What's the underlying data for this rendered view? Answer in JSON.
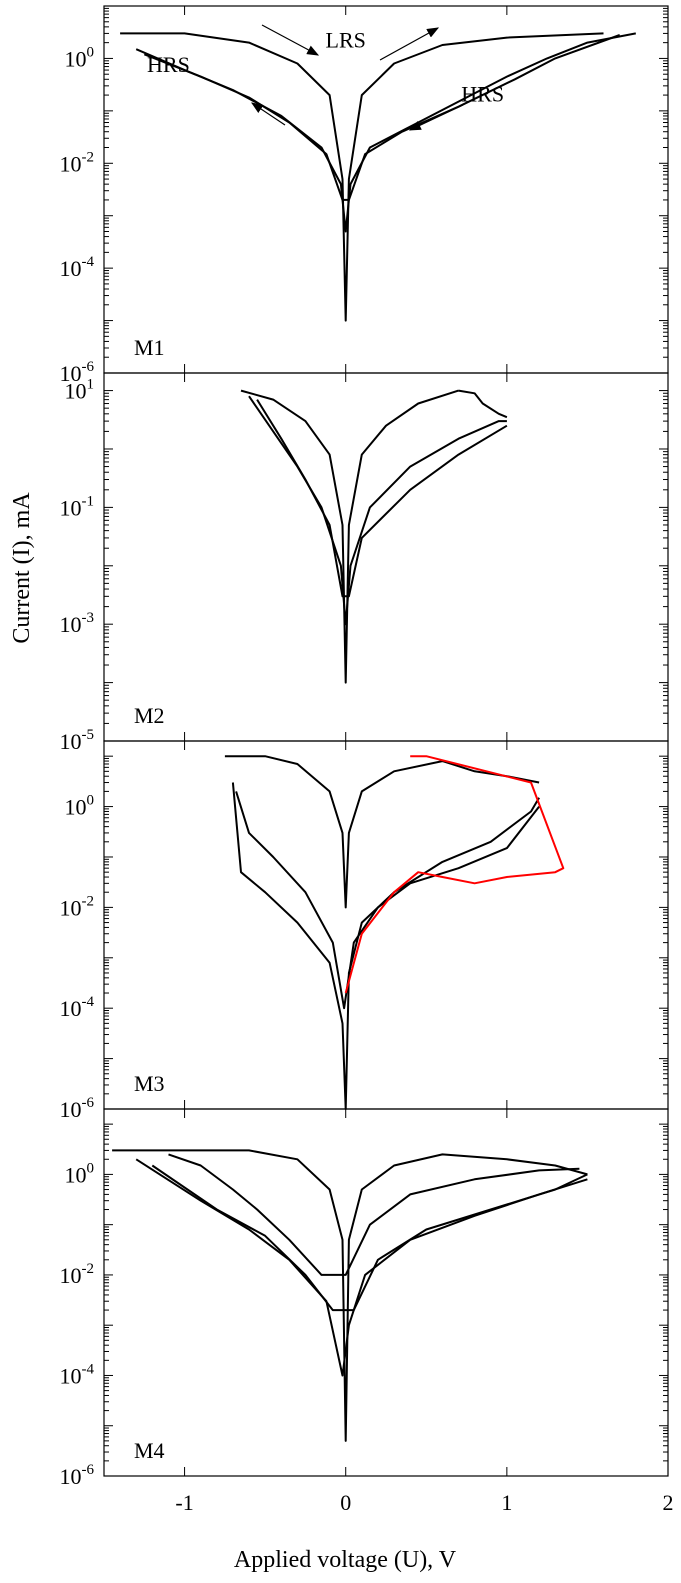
{
  "chart_data": {
    "type": "line",
    "xlabel": "Applied voltage (U), V",
    "ylabel": "Current (I), mA",
    "x_range": [
      -1.5,
      2
    ],
    "x_ticks": [
      -1,
      0,
      1,
      2
    ],
    "x_tick_labels": [
      "-1",
      "0",
      "1",
      "2"
    ],
    "y_scale": "log",
    "grid": false,
    "panels": [
      {
        "label": "M1",
        "ylim": [
          1e-06,
          10
        ],
        "y_ticks": [
          {
            "value": 1,
            "base": "10",
            "exp": "0"
          },
          {
            "value": 0.01,
            "base": "10",
            "exp": "-2"
          },
          {
            "value": 0.0001,
            "base": "10",
            "exp": "-4"
          },
          {
            "value": 1e-06,
            "base": "10",
            "exp": "-6"
          }
        ],
        "annotations": [
          {
            "text": "LRS",
            "x": 0.0,
            "y": 1.6
          },
          {
            "text": "HRS",
            "x": -1.1,
            "y": 0.55
          },
          {
            "text": "HRS",
            "x": 0.85,
            "y": 0.15
          }
        ],
        "series": [
          {
            "color": "#000000",
            "points": [
              [
                -1.4,
                3
              ],
              [
                -1.0,
                3
              ],
              [
                -0.6,
                2
              ],
              [
                -0.3,
                0.8
              ],
              [
                -0.1,
                0.2
              ],
              [
                -0.02,
                0.005
              ],
              [
                0,
                1e-05
              ],
              [
                0.02,
                0.005
              ],
              [
                0.1,
                0.2
              ],
              [
                0.3,
                0.8
              ],
              [
                0.6,
                1.8
              ],
              [
                1.0,
                2.5
              ],
              [
                1.6,
                3
              ]
            ]
          },
          {
            "color": "#000000",
            "points": [
              [
                -1.3,
                1.5
              ],
              [
                -1.0,
                0.6
              ],
              [
                -0.7,
                0.25
              ],
              [
                -0.4,
                0.08
              ],
              [
                -0.15,
                0.02
              ],
              [
                -0.03,
                0.004
              ],
              [
                0,
                0.0005
              ],
              [
                0.03,
                0.004
              ],
              [
                0.15,
                0.02
              ],
              [
                0.4,
                0.05
              ],
              [
                0.7,
                0.15
              ],
              [
                1.0,
                0.45
              ],
              [
                1.25,
                1.0
              ],
              [
                1.5,
                2.0
              ],
              [
                1.8,
                3
              ]
            ]
          },
          {
            "color": "#000000",
            "points": [
              [
                -1.25,
                1.2
              ],
              [
                -0.9,
                0.45
              ],
              [
                -0.6,
                0.18
              ],
              [
                -0.35,
                0.06
              ],
              [
                -0.12,
                0.015
              ],
              [
                -0.02,
                0.002
              ],
              [
                0.02,
                0.002
              ],
              [
                0.12,
                0.015
              ],
              [
                0.35,
                0.04
              ],
              [
                0.7,
                0.12
              ],
              [
                1.05,
                0.4
              ],
              [
                1.3,
                1.0
              ],
              [
                1.7,
                2.8
              ]
            ]
          }
        ]
      },
      {
        "label": "M2",
        "ylim": [
          1e-05,
          20
        ],
        "y_ticks": [
          {
            "value": 10,
            "base": "10",
            "exp": "1"
          },
          {
            "value": 0.1,
            "base": "10",
            "exp": "-1"
          },
          {
            "value": 0.001,
            "base": "10",
            "exp": "-3"
          },
          {
            "value": 1e-05,
            "base": "10",
            "exp": "-5"
          }
        ],
        "series": [
          {
            "color": "#000000",
            "points": [
              [
                -0.65,
                10
              ],
              [
                -0.45,
                7
              ],
              [
                -0.25,
                3
              ],
              [
                -0.1,
                0.8
              ],
              [
                -0.02,
                0.05
              ],
              [
                0,
                0.0001
              ],
              [
                0.02,
                0.05
              ],
              [
                0.1,
                0.8
              ],
              [
                0.25,
                2.5
              ],
              [
                0.45,
                6
              ],
              [
                0.7,
                10
              ]
            ]
          },
          {
            "color": "#000000",
            "points": [
              [
                -0.6,
                8
              ],
              [
                -0.45,
                2
              ],
              [
                -0.3,
                0.5
              ],
              [
                -0.15,
                0.1
              ],
              [
                -0.03,
                0.01
              ],
              [
                0,
                0.001
              ],
              [
                0.03,
                0.01
              ],
              [
                0.15,
                0.1
              ],
              [
                0.4,
                0.5
              ],
              [
                0.7,
                1.5
              ],
              [
                0.95,
                3
              ],
              [
                1.0,
                3
              ]
            ]
          },
          {
            "color": "#000000",
            "points": [
              [
                -0.55,
                7
              ],
              [
                -0.4,
                1.5
              ],
              [
                -0.25,
                0.3
              ],
              [
                -0.1,
                0.05
              ],
              [
                -0.02,
                0.003
              ],
              [
                0.02,
                0.003
              ],
              [
                0.1,
                0.03
              ],
              [
                0.4,
                0.2
              ],
              [
                0.7,
                0.8
              ],
              [
                1.0,
                2.5
              ]
            ]
          },
          {
            "color": "#000000",
            "points": [
              [
                0.7,
                10
              ],
              [
                0.8,
                9
              ],
              [
                0.85,
                6
              ],
              [
                0.95,
                4
              ],
              [
                1.0,
                3.5
              ]
            ]
          }
        ]
      },
      {
        "label": "M3",
        "ylim": [
          1e-06,
          20
        ],
        "y_ticks": [
          {
            "value": 1,
            "base": "10",
            "exp": "0"
          },
          {
            "value": 0.01,
            "base": "10",
            "exp": "-2"
          },
          {
            "value": 0.0001,
            "base": "10",
            "exp": "-4"
          },
          {
            "value": 1e-06,
            "base": "10",
            "exp": "-6"
          }
        ],
        "series": [
          {
            "color": "#000000",
            "points": [
              [
                -0.75,
                10
              ],
              [
                -0.5,
                10
              ],
              [
                -0.3,
                7
              ],
              [
                -0.1,
                2
              ],
              [
                -0.02,
                0.3
              ],
              [
                0,
                0.01
              ],
              [
                0.02,
                0.3
              ],
              [
                0.1,
                2
              ],
              [
                0.3,
                5
              ],
              [
                0.6,
                8
              ],
              [
                0.8,
                5
              ],
              [
                1.0,
                4
              ],
              [
                1.2,
                3
              ]
            ]
          },
          {
            "color": "#000000",
            "points": [
              [
                -0.7,
                3
              ],
              [
                -0.65,
                0.05
              ],
              [
                -0.5,
                0.02
              ],
              [
                -0.3,
                0.005
              ],
              [
                -0.1,
                0.0008
              ],
              [
                -0.02,
                5e-05
              ],
              [
                0,
                1e-06
              ],
              [
                0.02,
                0.0005
              ],
              [
                0.1,
                0.005
              ],
              [
                0.3,
                0.02
              ],
              [
                0.6,
                0.08
              ],
              [
                0.9,
                0.2
              ],
              [
                1.15,
                0.8
              ],
              [
                1.2,
                1.5
              ]
            ]
          },
          {
            "color": "#000000",
            "points": [
              [
                -0.68,
                2
              ],
              [
                -0.6,
                0.3
              ],
              [
                -0.45,
                0.1
              ],
              [
                -0.25,
                0.02
              ],
              [
                -0.08,
                0.002
              ],
              [
                -0.01,
                0.0001
              ],
              [
                0.05,
                0.002
              ],
              [
                0.2,
                0.01
              ],
              [
                0.4,
                0.03
              ],
              [
                0.7,
                0.06
              ],
              [
                1.0,
                0.15
              ],
              [
                1.2,
                1.0
              ]
            ]
          },
          {
            "color": "#ff0000",
            "points": [
              [
                0.0,
                0.0002
              ],
              [
                0.1,
                0.003
              ],
              [
                0.3,
                0.02
              ],
              [
                0.45,
                0.05
              ],
              [
                0.6,
                0.04
              ],
              [
                0.8,
                0.03
              ],
              [
                1.0,
                0.04
              ],
              [
                1.3,
                0.05
              ],
              [
                1.35,
                0.06
              ],
              [
                1.15,
                3
              ],
              [
                0.5,
                10
              ],
              [
                0.4,
                10
              ]
            ]
          }
        ]
      },
      {
        "label": "M4",
        "ylim": [
          1e-06,
          20
        ],
        "y_ticks": [
          {
            "value": 1,
            "base": "10",
            "exp": "0"
          },
          {
            "value": 0.01,
            "base": "10",
            "exp": "-2"
          },
          {
            "value": 0.0001,
            "base": "10",
            "exp": "-4"
          },
          {
            "value": 1e-06,
            "base": "10",
            "exp": "-6"
          }
        ],
        "series": [
          {
            "color": "#000000",
            "points": [
              [
                -1.45,
                3
              ],
              [
                -1.0,
                3
              ],
              [
                -0.6,
                3
              ],
              [
                -0.3,
                2
              ],
              [
                -0.1,
                0.5
              ],
              [
                -0.02,
                0.05
              ],
              [
                0,
                5e-06
              ],
              [
                0.02,
                0.05
              ],
              [
                0.1,
                0.5
              ],
              [
                0.3,
                1.5
              ],
              [
                0.6,
                2.5
              ],
              [
                1.0,
                2
              ],
              [
                1.3,
                1.5
              ],
              [
                1.5,
                1
              ]
            ]
          },
          {
            "color": "#000000",
            "points": [
              [
                -1.3,
                2
              ],
              [
                -0.9,
                0.3
              ],
              [
                -0.6,
                0.08
              ],
              [
                -0.35,
                0.02
              ],
              [
                -0.12,
                0.003
              ],
              [
                -0.02,
                0.0001
              ],
              [
                0.02,
                0.001
              ],
              [
                0.12,
                0.01
              ],
              [
                0.4,
                0.05
              ],
              [
                0.8,
                0.15
              ],
              [
                1.2,
                0.4
              ],
              [
                1.5,
                0.8
              ]
            ]
          },
          {
            "color": "#000000",
            "points": [
              [
                -1.2,
                1.5
              ],
              [
                -0.8,
                0.2
              ],
              [
                -0.5,
                0.06
              ],
              [
                -0.25,
                0.01
              ],
              [
                -0.08,
                0.002
              ],
              [
                0.05,
                0.002
              ],
              [
                0.2,
                0.02
              ],
              [
                0.5,
                0.08
              ],
              [
                0.9,
                0.2
              ],
              [
                1.3,
                0.5
              ],
              [
                1.5,
                1
              ]
            ]
          },
          {
            "color": "#000000",
            "points": [
              [
                -1.1,
                2.5
              ],
              [
                -0.9,
                1.5
              ],
              [
                -0.7,
                0.5
              ],
              [
                -0.55,
                0.2
              ],
              [
                -0.35,
                0.05
              ],
              [
                -0.15,
                0.01
              ],
              [
                0,
                0.01
              ],
              [
                0.15,
                0.1
              ],
              [
                0.4,
                0.4
              ],
              [
                0.8,
                0.8
              ],
              [
                1.2,
                1.2
              ],
              [
                1.45,
                1.3
              ]
            ]
          }
        ]
      }
    ]
  }
}
